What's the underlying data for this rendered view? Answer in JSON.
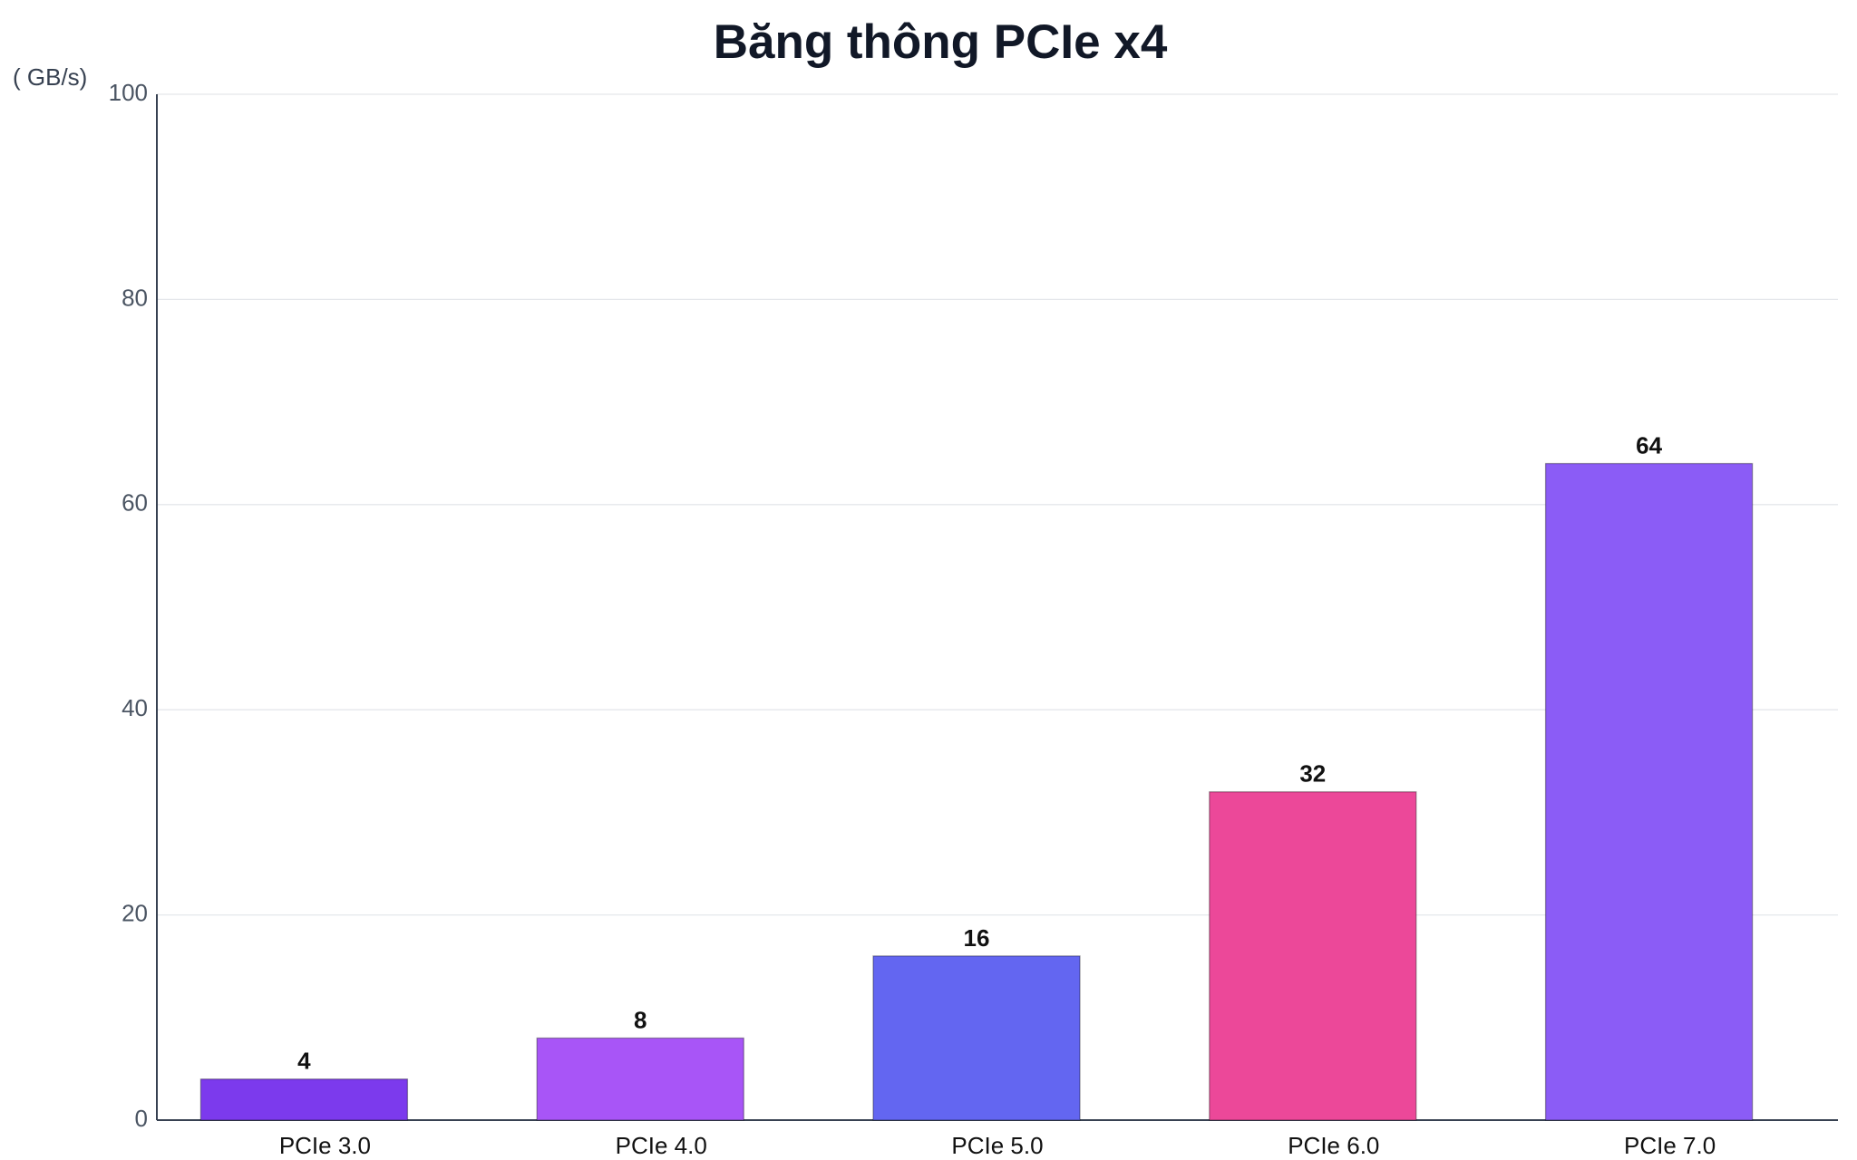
{
  "chart_data": {
    "type": "bar",
    "title": "Băng thông PCIe x4",
    "y_label": "( GB/s)",
    "categories": [
      "PCIe 3.0",
      "PCIe 4.0",
      "PCIe 5.0",
      "PCIe 6.0",
      "PCIe 7.0"
    ],
    "values": [
      4,
      8,
      16,
      32,
      64
    ],
    "colors": [
      "#7c3aed",
      "#a855f7",
      "#6366f1",
      "#ec4899",
      "#8b5cf6"
    ],
    "ylim": [
      0,
      100
    ],
    "yticks": [
      0,
      20,
      40,
      60,
      80,
      100
    ],
    "grid": true
  }
}
